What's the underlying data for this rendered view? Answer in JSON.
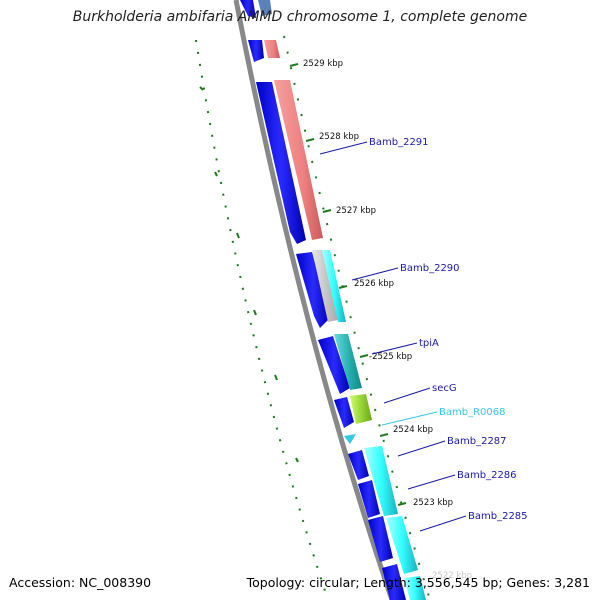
{
  "title": "Burkholderia ambifaria AMMD chromosome 1, complete genome",
  "footer": {
    "accession": "Accession: NC_008390",
    "summary": "Topology: circular; Length: 3,556,545 bp; Genes: 3,281"
  },
  "colors": {
    "backbone": "#888888",
    "forward_cds": "#1010ee",
    "reverse_cds": "#f08080",
    "pseudo": "#00ffff",
    "rna": "#a6e22e",
    "gc_skew": "#1e7a1e"
  },
  "scale": {
    "ticks": [
      {
        "label": "2529 kbp"
      },
      {
        "label": "2528 kbp"
      },
      {
        "label": "2527 kbp"
      },
      {
        "label": "2526 kbp"
      },
      {
        "label": "-2525 kbp"
      },
      {
        "label": "2524 kbp"
      },
      {
        "label": "2523 kbp"
      }
    ]
  },
  "genes": [
    {
      "label": "Bamb_2291",
      "color": "#1a1aaa"
    },
    {
      "label": "Bamb_2290",
      "color": "#1a1aaa"
    },
    {
      "label": "tpiA",
      "color": "#1a1aaa"
    },
    {
      "label": "secG",
      "color": "#1a1aaa"
    },
    {
      "label": "Bamb_R0068",
      "color": "#33c8e6"
    },
    {
      "label": "Bamb_2287",
      "color": "#1a1aaa"
    },
    {
      "label": "Bamb_2286",
      "color": "#1a1aaa"
    },
    {
      "label": "Bamb_2285",
      "color": "#1a1aaa"
    }
  ]
}
